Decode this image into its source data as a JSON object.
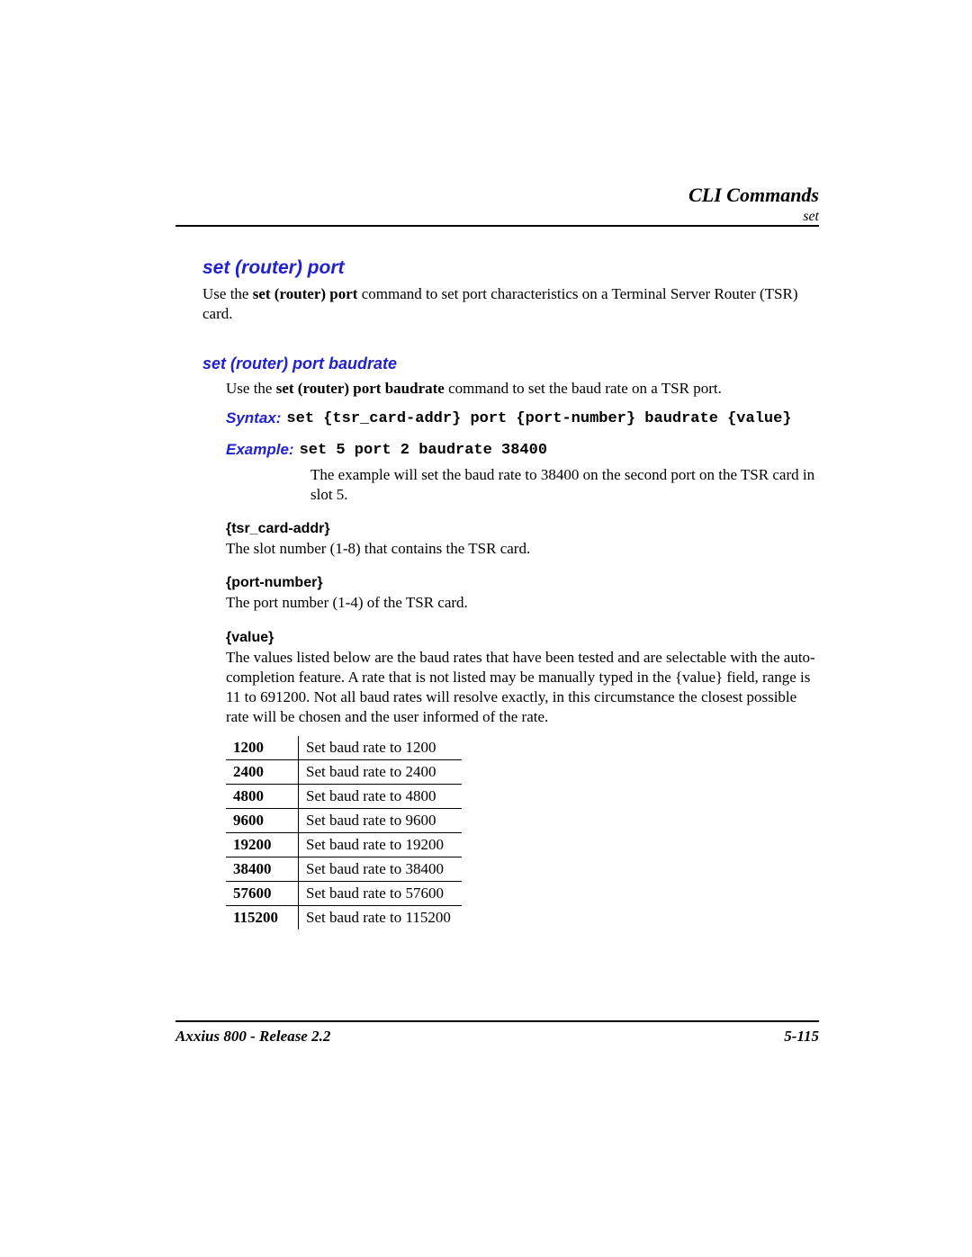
{
  "header": {
    "title": "CLI Commands",
    "subtitle": "set"
  },
  "section": {
    "title": "set (router) port",
    "intro_a": "Use the ",
    "intro_bold": "set (router) port",
    "intro_b": " command to set port characteristics on a Terminal Server Router (TSR) card."
  },
  "subsection": {
    "title": "set (router) port baudrate",
    "intro_a": "Use the ",
    "intro_bold": "set (router) port baudrate",
    "intro_b": " command to set the baud rate on a TSR port.",
    "syntax_label": "Syntax:",
    "syntax_code": "set {tsr_card-addr} port {port-number} baudrate {value}",
    "example_label": "Example:",
    "example_code": "set 5 port 2 baudrate 38400",
    "example_desc": "The example will set the baud rate to 38400 on the second port on the TSR card in slot 5."
  },
  "params": [
    {
      "name": "{tsr_card-addr}",
      "desc": "The slot number (1-8) that contains the TSR card."
    },
    {
      "name": "{port-number}",
      "desc": "The port number (1-4) of the TSR card."
    },
    {
      "name": "{value}",
      "desc": "The values listed below are the baud rates that have been tested and are selectable with the auto-completion feature. A rate that is not listed may be manually typed in the {value} field, range is 11 to 691200. Not all baud rates will resolve exactly, in this circumstance the closest possible rate will be chosen and the user informed of the rate."
    }
  ],
  "rates": [
    {
      "rate": "1200",
      "desc": "Set baud rate to 1200"
    },
    {
      "rate": "2400",
      "desc": "Set baud rate to 2400"
    },
    {
      "rate": "4800",
      "desc": "Set baud rate to 4800"
    },
    {
      "rate": "9600",
      "desc": "Set baud rate to 9600"
    },
    {
      "rate": "19200",
      "desc": "Set baud rate to 19200"
    },
    {
      "rate": "38400",
      "desc": "Set baud rate to 38400"
    },
    {
      "rate": "57600",
      "desc": "Set baud rate to 57600"
    },
    {
      "rate": "115200",
      "desc": "Set baud rate to 115200"
    }
  ],
  "footer": {
    "left": "Axxius 800 - Release 2.2",
    "right": "5-115"
  }
}
